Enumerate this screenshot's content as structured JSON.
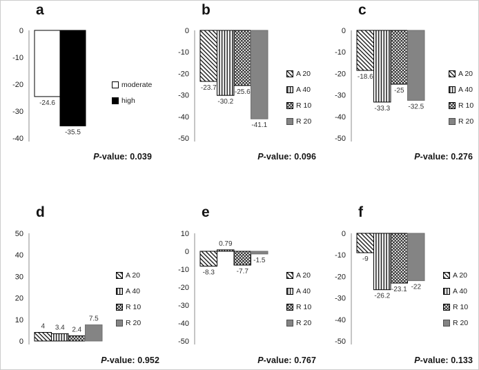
{
  "figure": {
    "background": "#ffffff",
    "panels": [
      {
        "letter": "a",
        "p_prefix": "P",
        "p_rest": "-value: 0.039"
      },
      {
        "letter": "b",
        "p_prefix": "P",
        "p_rest": "-value: 0.096"
      },
      {
        "letter": "c",
        "p_prefix": "P",
        "p_rest": "-value: 0.276"
      },
      {
        "letter": "d",
        "p_prefix": "P",
        "p_rest": "-value: 0.952"
      },
      {
        "letter": "e",
        "p_prefix": "P",
        "p_rest": "-value: 0.767"
      },
      {
        "letter": "f",
        "p_prefix": "P",
        "p_rest": "-value: 0.133"
      }
    ]
  },
  "colors": {
    "bar_gray": "#848484",
    "bar_black": "#000000",
    "bar_white": "#ffffff",
    "hatch_ink": "#1a1a1a",
    "axis_line": "#a6a6a6"
  },
  "chart_data": [
    {
      "type": "bar",
      "panel": "a",
      "categories": [
        "moderate",
        "high"
      ],
      "values": [
        -24.6,
        -35.5
      ],
      "value_labels": [
        "-24.6",
        "-35.5"
      ],
      "ylim": [
        -40,
        0
      ],
      "yticks": [
        0,
        -10,
        -20,
        -30,
        -40
      ],
      "legend": [
        "moderate",
        "high"
      ],
      "legend_position": "right",
      "grid": false,
      "styles": [
        "solid-white",
        "solid-black"
      ],
      "p_value": "0.039"
    },
    {
      "type": "bar",
      "panel": "b",
      "categories": [
        "A 20",
        "A 40",
        "R 10",
        "R 20"
      ],
      "values": [
        -23.7,
        -30.2,
        -25.6,
        -41.1
      ],
      "value_labels": [
        "-23.7",
        "-30.2",
        "-25.6",
        "-41.1"
      ],
      "ylim": [
        -50,
        0
      ],
      "yticks": [
        0,
        -10,
        -20,
        -30,
        -40,
        -50
      ],
      "legend": [
        "A 20",
        "A 40",
        "R 10",
        "R 20"
      ],
      "legend_position": "right",
      "grid": false,
      "styles": [
        "diagonal-hatch",
        "vertical-lines",
        "crosshatch",
        "solid-gray"
      ],
      "p_value": "0.096"
    },
    {
      "type": "bar",
      "panel": "c",
      "categories": [
        "A 20",
        "A 40",
        "R 10",
        "R 20"
      ],
      "values": [
        -18.6,
        -33.3,
        -25,
        -32.5
      ],
      "value_labels": [
        "-18.6",
        "-33.3",
        "-25",
        "-32.5"
      ],
      "ylim": [
        -50,
        0
      ],
      "yticks": [
        0,
        -10,
        -20,
        -30,
        -40,
        -50
      ],
      "legend": [
        "A 20",
        "A 40",
        "R 10",
        "R 20"
      ],
      "legend_position": "right",
      "grid": false,
      "styles": [
        "diagonal-hatch",
        "vertical-lines",
        "crosshatch",
        "solid-gray"
      ],
      "p_value": "0.276"
    },
    {
      "type": "bar",
      "panel": "d",
      "categories": [
        "A 20",
        "A 40",
        "R 10",
        "R 20"
      ],
      "values": [
        4,
        3.4,
        2.4,
        7.5
      ],
      "value_labels": [
        "4",
        "3.4",
        "2.4",
        "7.5"
      ],
      "ylim": [
        0,
        50
      ],
      "yticks": [
        50,
        40,
        30,
        20,
        10,
        0
      ],
      "legend": [
        "A 20",
        "A 40",
        "R 10",
        "R 20"
      ],
      "legend_position": "right",
      "grid": false,
      "styles": [
        "diagonal-hatch",
        "vertical-lines",
        "crosshatch",
        "solid-gray"
      ],
      "p_value": "0.952"
    },
    {
      "type": "bar",
      "panel": "e",
      "categories": [
        "A 20",
        "A 40",
        "R 10",
        "R 20"
      ],
      "values": [
        -8.3,
        0.79,
        -7.7,
        -1.5
      ],
      "value_labels": [
        "-8.3",
        "0.79",
        "-7.7",
        "-1.5"
      ],
      "ylim": [
        -50,
        10
      ],
      "yticks": [
        10,
        0,
        -10,
        -20,
        -30,
        -40,
        -50
      ],
      "legend": [
        "A 20",
        "A 40",
        "R 10",
        "R 20"
      ],
      "legend_position": "right",
      "grid": false,
      "styles": [
        "diagonal-hatch",
        "vertical-lines",
        "crosshatch",
        "solid-gray"
      ],
      "p_value": "0.767"
    },
    {
      "type": "bar",
      "panel": "f",
      "categories": [
        "A 20",
        "A 40",
        "R 10",
        "R 20"
      ],
      "values": [
        -9,
        -26.2,
        -23.1,
        -22
      ],
      "value_labels": [
        "-9",
        "-26.2",
        "-23.1",
        "-22"
      ],
      "ylim": [
        -50,
        0
      ],
      "yticks": [
        0,
        -10,
        -20,
        -30,
        -40,
        -50
      ],
      "legend": [
        "A 20",
        "A 40",
        "R 10",
        "R 20"
      ],
      "legend_position": "right",
      "grid": false,
      "styles": [
        "diagonal-hatch",
        "vertical-lines",
        "crosshatch",
        "solid-gray"
      ],
      "p_value": "0.133"
    }
  ]
}
